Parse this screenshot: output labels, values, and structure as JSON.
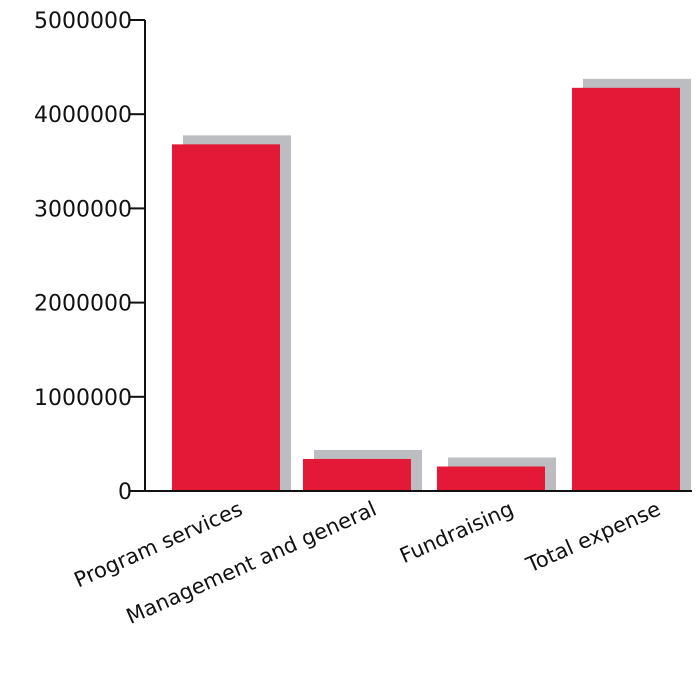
{
  "chart_data": {
    "type": "bar",
    "categories": [
      "Program services",
      "Management and general",
      "Fundraising",
      "Total expense"
    ],
    "values": [
      3680000,
      340000,
      260000,
      4280000
    ],
    "ylim": [
      0,
      5000000
    ],
    "yticks": [
      0,
      1000000,
      2000000,
      3000000,
      4000000,
      5000000
    ],
    "title": "",
    "xlabel": "",
    "ylabel": "",
    "grid": false,
    "legend": "none",
    "colors": {
      "bar": "#e31937",
      "shadow": "#bcbdc0",
      "axis": "#111111"
    }
  }
}
